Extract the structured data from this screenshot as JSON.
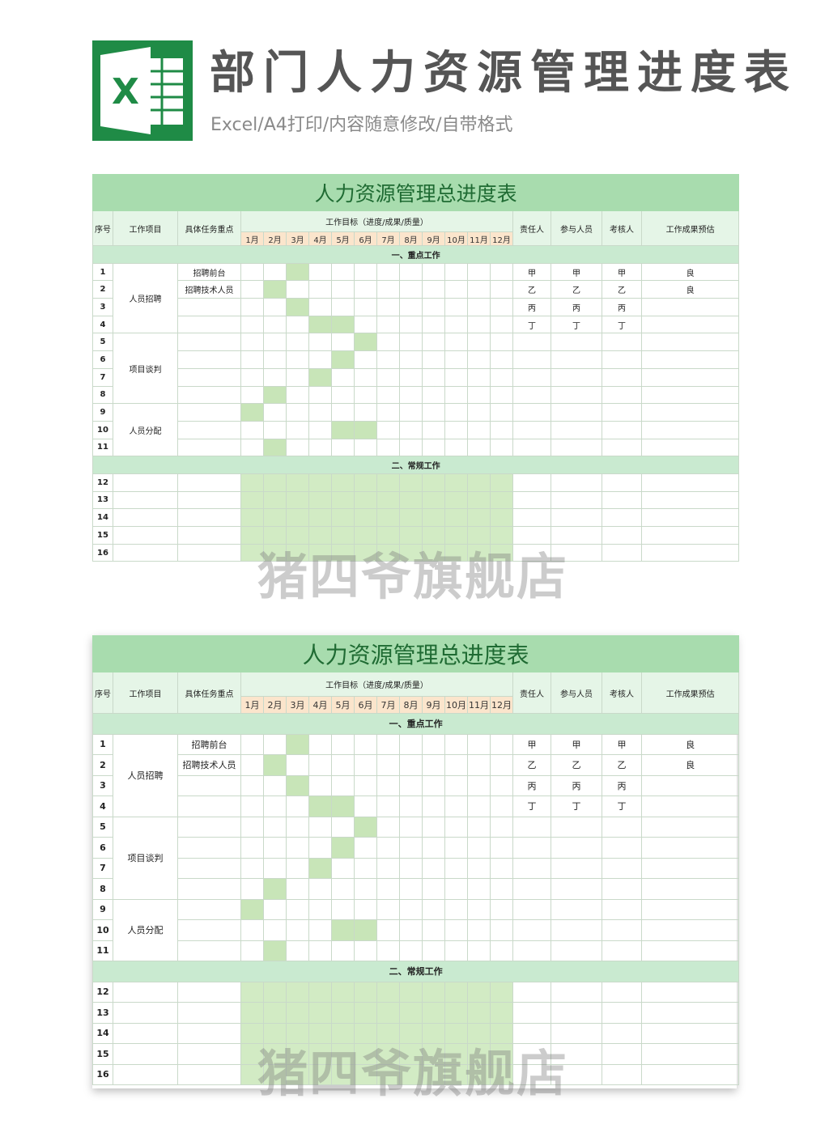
{
  "header": {
    "logo_letter": "X",
    "title": "部门人力资源管理进度表",
    "subtitle": "Excel/A4打印/内容随意修改/自带格式",
    "brand_color": "#1f8b46"
  },
  "table": {
    "title": "人力资源管理总进度表",
    "headers": {
      "seq": "序号",
      "project": "工作项目",
      "task": "具体任务重点",
      "goal": "工作目标（进度/成果/质量）",
      "months": [
        "1月",
        "2月",
        "3月",
        "4月",
        "5月",
        "6月",
        "7月",
        "8月",
        "9月",
        "10月",
        "11月",
        "12月"
      ],
      "owner": "责任人",
      "participants": "参与人员",
      "reviewer": "考核人",
      "evaluation": "工作成果预估"
    },
    "sections": {
      "key": "一、重点工作",
      "regular": "二、常规工作"
    },
    "groups": [
      {
        "label": "人员招聘",
        "start_row": 1,
        "rows": 4
      },
      {
        "label": "项目谈判",
        "start_row": 5,
        "rows": 4
      },
      {
        "label": "人员分配",
        "start_row": 9,
        "rows": 3
      }
    ],
    "rows": [
      {
        "seq": "1",
        "task": "招聘前台",
        "months_active": [
          3
        ],
        "owner": "甲",
        "participants": "甲",
        "reviewer": "甲",
        "evaluation": "良"
      },
      {
        "seq": "2",
        "task": "招聘技术人员",
        "months_active": [
          2
        ],
        "owner": "乙",
        "participants": "乙",
        "reviewer": "乙",
        "evaluation": "良"
      },
      {
        "seq": "3",
        "task": "",
        "months_active": [
          3
        ],
        "owner": "丙",
        "participants": "丙",
        "reviewer": "丙",
        "evaluation": ""
      },
      {
        "seq": "4",
        "task": "",
        "months_active": [
          4,
          5
        ],
        "owner": "丁",
        "participants": "丁",
        "reviewer": "丁",
        "evaluation": ""
      },
      {
        "seq": "5",
        "task": "",
        "months_active": [
          6
        ],
        "owner": "",
        "participants": "",
        "reviewer": "",
        "evaluation": ""
      },
      {
        "seq": "6",
        "task": "",
        "months_active": [
          5
        ],
        "owner": "",
        "participants": "",
        "reviewer": "",
        "evaluation": ""
      },
      {
        "seq": "7",
        "task": "",
        "months_active": [
          4
        ],
        "owner": "",
        "participants": "",
        "reviewer": "",
        "evaluation": ""
      },
      {
        "seq": "8",
        "task": "",
        "months_active": [
          2
        ],
        "owner": "",
        "participants": "",
        "reviewer": "",
        "evaluation": ""
      },
      {
        "seq": "9",
        "task": "",
        "months_active": [
          1
        ],
        "owner": "",
        "participants": "",
        "reviewer": "",
        "evaluation": ""
      },
      {
        "seq": "10",
        "task": "",
        "months_active": [
          5,
          6
        ],
        "owner": "",
        "participants": "",
        "reviewer": "",
        "evaluation": ""
      },
      {
        "seq": "11",
        "task": "",
        "months_active": [
          2
        ],
        "owner": "",
        "participants": "",
        "reviewer": "",
        "evaluation": ""
      }
    ],
    "regular_rows": [
      "12",
      "13",
      "14",
      "15",
      "16"
    ]
  },
  "watermark": "猪四爷旗舰店"
}
